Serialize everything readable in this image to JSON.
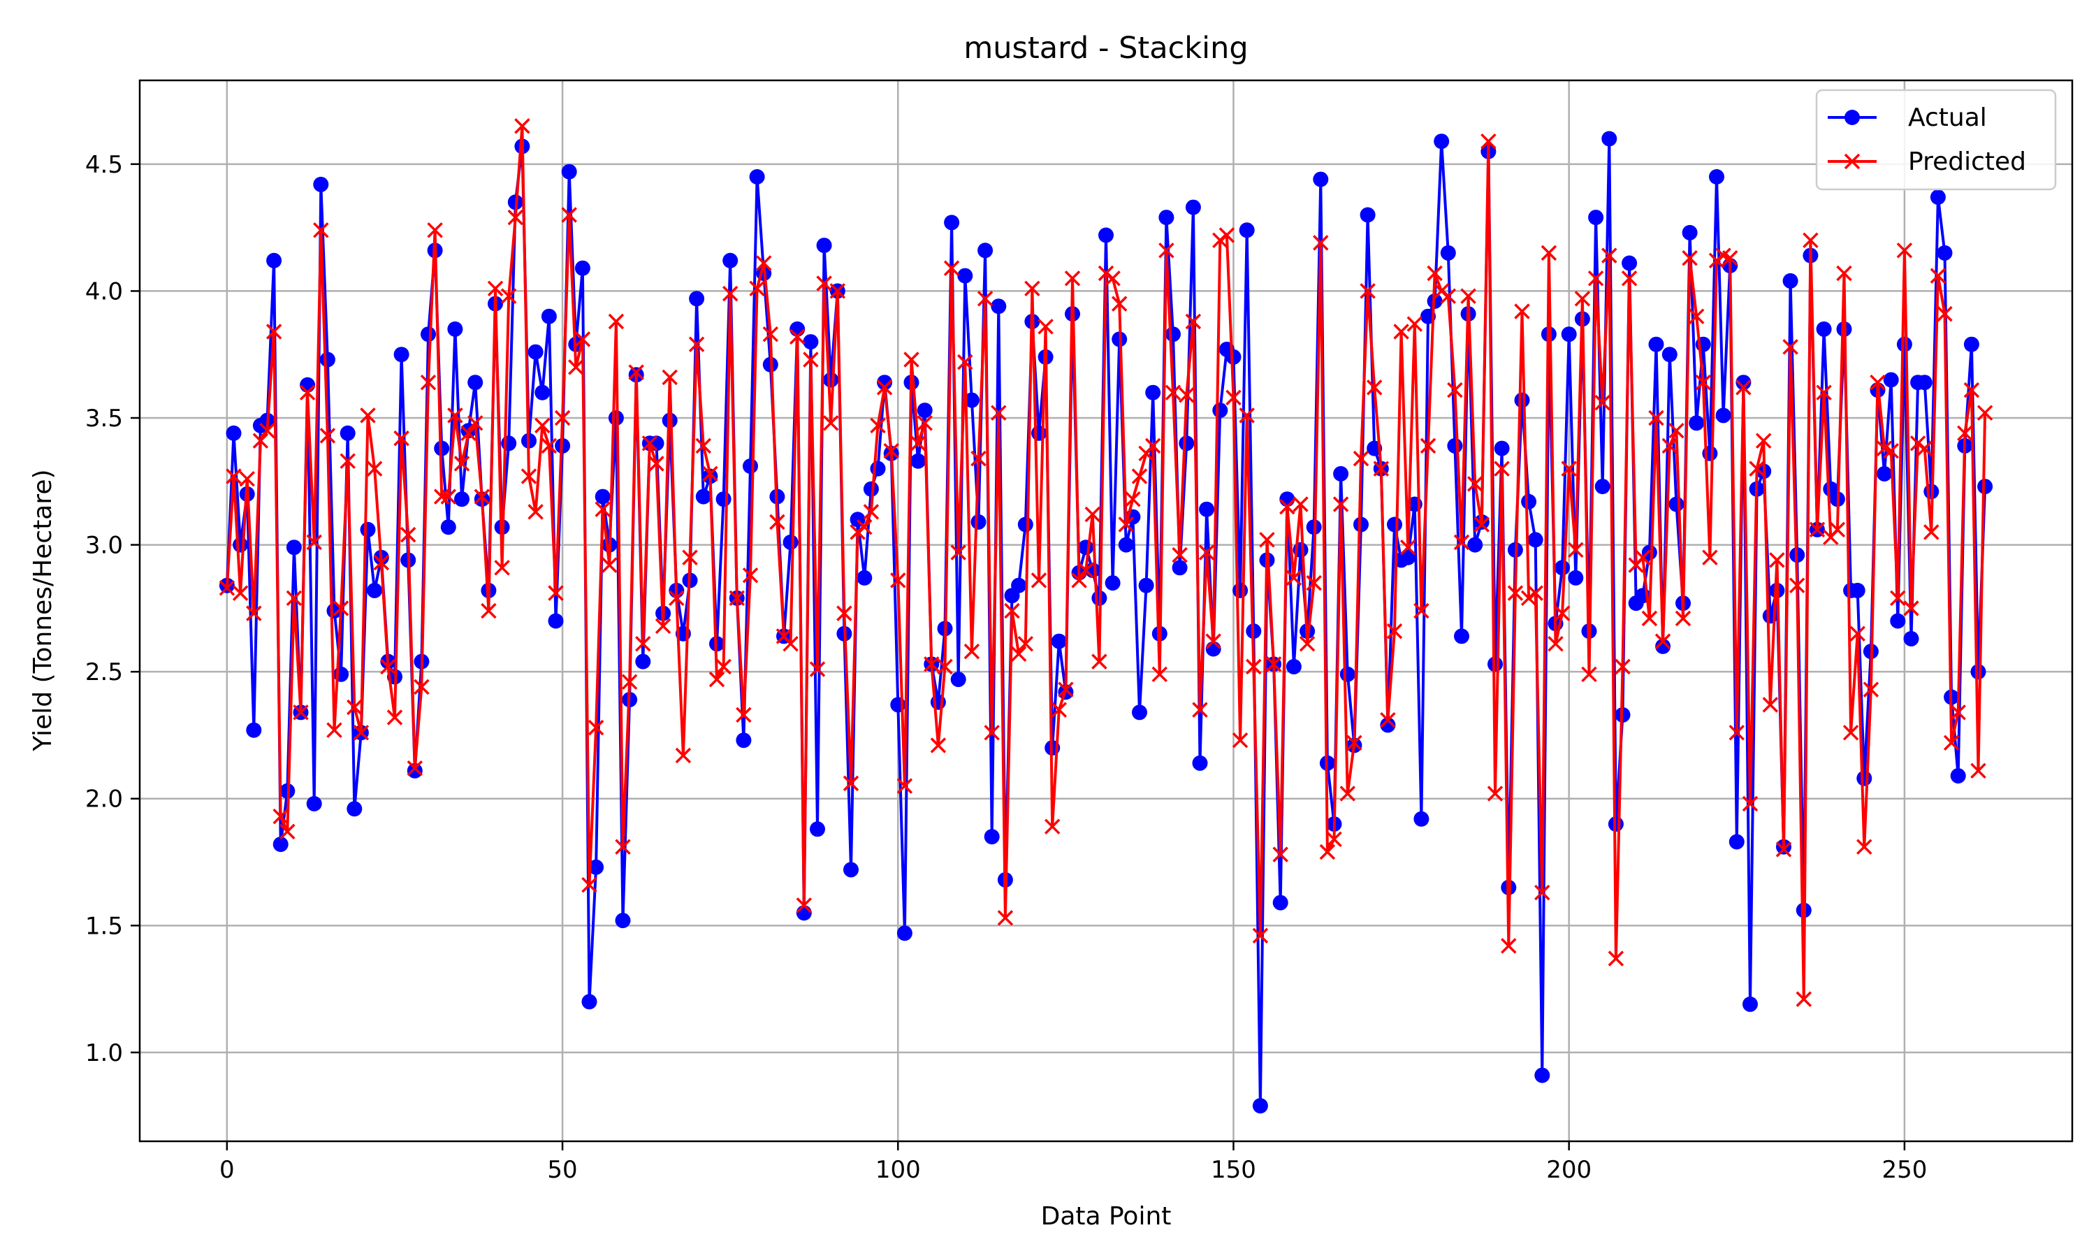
{
  "chart_data": {
    "type": "line",
    "title": "mustard - Stacking",
    "xlabel": "Data Point",
    "ylabel": "Yield (Tonnes/Hectare)",
    "xlim": [
      -13,
      275
    ],
    "ylim": [
      0.65,
      4.83
    ],
    "xticks": [
      0,
      50,
      100,
      150,
      200,
      250
    ],
    "xtick_labels": [
      "0",
      "50",
      "100",
      "150",
      "200",
      "250"
    ],
    "yticks": [
      1.0,
      1.5,
      2.0,
      2.5,
      3.0,
      3.5,
      4.0,
      4.5
    ],
    "ytick_labels": [
      "1.0",
      "1.5",
      "2.0",
      "2.5",
      "3.0",
      "3.5",
      "4.0",
      "4.5"
    ],
    "grid": true,
    "legend": {
      "position": "top-right",
      "entries": [
        "Actual",
        "Predicted"
      ]
    },
    "series": [
      {
        "name": "Actual",
        "color": "#0000ff",
        "marker": "circle",
        "values": [
          2.84,
          3.44,
          3.0,
          3.2,
          2.27,
          3.47,
          3.49,
          4.12,
          1.82,
          2.03,
          2.99,
          2.34,
          3.63,
          1.98,
          4.42,
          3.73,
          2.74,
          2.49,
          3.44,
          1.96,
          2.26,
          3.06,
          2.82,
          2.95,
          2.54,
          2.48,
          3.75,
          2.94,
          2.11,
          2.54,
          3.83,
          4.16,
          3.38,
          3.07,
          3.85,
          3.18,
          3.45,
          3.64,
          3.18,
          2.82,
          3.95,
          3.07,
          3.4,
          4.35,
          4.57,
          3.41,
          3.76,
          3.6,
          3.9,
          2.7,
          3.39,
          4.47,
          3.79,
          4.09,
          1.2,
          1.73,
          3.19,
          3.0,
          3.5,
          1.52,
          2.39,
          3.67,
          2.54,
          3.4,
          3.4,
          2.73,
          3.49,
          2.82,
          2.65,
          2.86,
          3.97,
          3.19,
          3.27,
          2.61,
          3.18,
          4.12,
          2.79,
          2.23,
          3.31,
          4.45,
          4.07,
          3.71,
          3.19,
          2.64,
          3.01,
          3.85,
          1.55,
          3.8,
          1.88,
          4.18,
          3.65,
          4.0,
          2.65,
          1.72,
          3.1,
          2.87,
          3.22,
          3.3,
          3.64,
          3.36,
          2.37,
          1.47,
          3.64,
          3.33,
          3.53,
          2.53,
          2.38,
          2.67,
          4.27,
          2.47,
          4.06,
          3.57,
          3.09,
          4.16,
          1.85,
          3.94,
          1.68,
          2.8,
          2.84,
          3.08,
          3.88,
          3.44,
          3.74,
          2.2,
          2.62,
          2.42,
          3.91,
          2.89,
          2.99,
          2.9,
          2.79,
          4.22,
          2.85,
          3.81,
          3.0,
          3.11,
          2.34,
          2.84,
          3.6,
          2.65,
          4.29,
          3.83,
          2.91,
          3.4,
          4.33,
          2.14,
          3.14,
          2.59,
          3.53,
          3.77,
          3.74,
          2.82,
          4.24,
          2.66,
          0.79,
          2.94,
          2.53,
          1.59,
          3.18,
          2.52,
          2.98,
          2.66,
          3.07,
          4.44,
          2.14,
          1.9,
          3.28,
          2.49,
          2.21,
          3.08,
          4.3,
          3.38,
          3.3,
          2.29,
          3.08,
          2.94,
          2.95,
          3.16,
          1.92,
          3.9,
          3.96,
          4.59,
          4.15,
          3.39,
          2.64,
          3.91,
          3.0,
          3.09,
          4.55,
          2.53,
          3.38,
          1.65,
          2.98,
          3.57,
          3.17,
          3.02,
          0.91,
          3.83,
          2.69,
          2.91,
          3.83,
          2.87,
          3.89,
          2.66,
          4.29,
          3.23,
          4.6,
          1.9,
          2.33,
          4.11,
          2.77,
          2.8,
          2.97,
          3.79,
          2.6,
          3.75,
          3.16,
          2.77,
          4.23,
          3.48,
          3.79,
          3.36,
          4.45,
          3.51,
          4.1,
          1.83,
          3.64,
          1.19,
          3.22,
          3.29,
          2.72,
          2.82,
          1.81,
          4.04,
          2.96,
          1.56,
          4.14,
          3.06,
          3.85,
          3.22,
          3.18,
          3.85,
          2.82,
          2.82,
          2.08,
          2.58,
          3.61,
          3.28,
          3.65,
          2.7,
          3.79,
          2.63,
          3.64,
          3.64,
          3.21,
          4.37,
          4.15,
          2.4,
          2.09,
          3.39,
          3.79,
          2.5,
          3.23
        ]
      },
      {
        "name": "Predicted",
        "color": "#ff0000",
        "marker": "x",
        "values": [
          2.83,
          3.27,
          2.81,
          3.26,
          2.73,
          3.41,
          3.45,
          3.84,
          1.93,
          1.87,
          2.79,
          2.34,
          3.6,
          3.01,
          4.24,
          3.43,
          2.27,
          2.75,
          3.33,
          2.36,
          2.26,
          3.51,
          3.3,
          2.93,
          2.52,
          2.32,
          3.42,
          3.04,
          2.12,
          2.44,
          3.64,
          4.24,
          3.19,
          3.19,
          3.51,
          3.32,
          3.44,
          3.48,
          3.19,
          2.74,
          4.01,
          2.91,
          3.98,
          4.29,
          4.65,
          3.27,
          3.13,
          3.47,
          3.39,
          2.81,
          3.5,
          4.3,
          3.7,
          3.81,
          1.66,
          2.28,
          3.14,
          2.92,
          3.88,
          1.81,
          2.46,
          3.68,
          2.61,
          3.4,
          3.32,
          2.68,
          3.66,
          2.79,
          2.17,
          2.95,
          3.79,
          3.39,
          3.28,
          2.47,
          2.52,
          3.99,
          2.79,
          2.33,
          2.88,
          4.01,
          4.11,
          3.83,
          3.09,
          2.64,
          2.61,
          3.82,
          1.58,
          3.73,
          2.51,
          4.03,
          3.48,
          4.0,
          2.73,
          2.06,
          3.05,
          3.07,
          3.13,
          3.47,
          3.62,
          3.37,
          2.86,
          2.05,
          3.73,
          3.4,
          3.48,
          2.53,
          2.21,
          2.52,
          4.09,
          2.97,
          3.72,
          2.58,
          3.34,
          3.97,
          2.26,
          3.52,
          1.53,
          2.74,
          2.57,
          2.61,
          4.01,
          2.86,
          3.86,
          1.89,
          2.35,
          2.43,
          4.05,
          2.86,
          2.9,
          3.12,
          2.54,
          4.07,
          4.05,
          3.95,
          3.08,
          3.18,
          3.27,
          3.36,
          3.39,
          2.49,
          4.16,
          3.6,
          2.96,
          3.59,
          3.88,
          2.35,
          2.97,
          2.62,
          4.2,
          4.22,
          3.58,
          2.23,
          3.51,
          2.52,
          1.46,
          3.02,
          2.53,
          1.78,
          3.15,
          2.87,
          3.16,
          2.61,
          2.85,
          4.19,
          1.79,
          1.84,
          3.16,
          2.02,
          2.22,
          3.34,
          4.0,
          3.62,
          3.3,
          2.31,
          2.66,
          3.84,
          2.99,
          3.87,
          2.74,
          3.39,
          4.07,
          4.0,
          3.98,
          3.61,
          3.01,
          3.98,
          3.24,
          3.08,
          4.59,
          2.02,
          3.3,
          1.42,
          2.81,
          3.92,
          2.79,
          2.81,
          1.63,
          4.15,
          2.61,
          2.73,
          3.3,
          2.98,
          3.97,
          2.49,
          4.05,
          3.56,
          4.14,
          1.37,
          2.52,
          4.05,
          2.92,
          2.95,
          2.71,
          3.5,
          2.62,
          3.39,
          3.45,
          2.71,
          4.13,
          3.9,
          3.64,
          2.95,
          4.12,
          4.14,
          4.13,
          2.26,
          3.62,
          1.98,
          3.3,
          3.41,
          2.37,
          2.94,
          1.8,
          3.78,
          2.84,
          1.21,
          4.2,
          3.06,
          3.6,
          3.03,
          3.06,
          4.07,
          2.26,
          2.65,
          1.81,
          2.43,
          3.64,
          3.38,
          3.37,
          2.79,
          4.16,
          2.75,
          3.4,
          3.38,
          3.05,
          4.06,
          3.91,
          2.22,
          2.34,
          3.44,
          3.61,
          2.11,
          3.52
        ]
      }
    ]
  }
}
